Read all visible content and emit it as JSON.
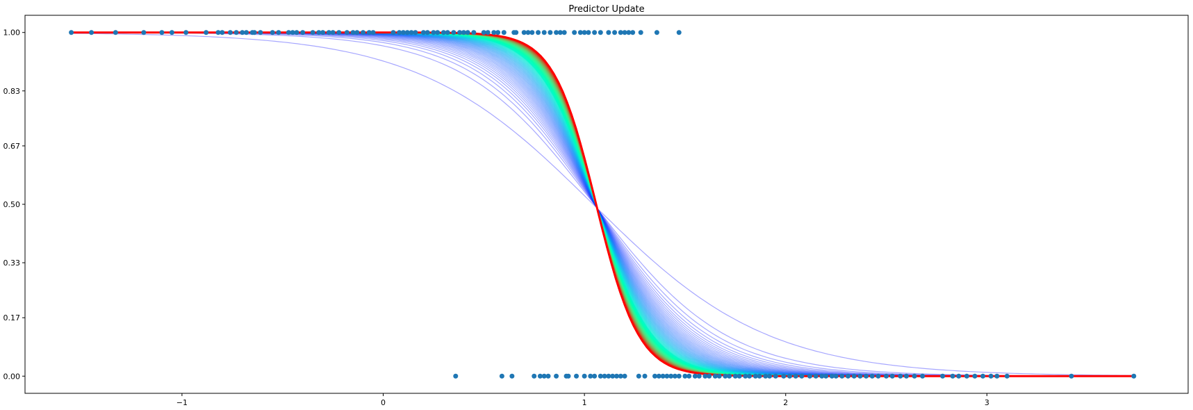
{
  "chart_data": {
    "type": "scatter",
    "title": "Predictor Update",
    "xlabel": "",
    "ylabel": "",
    "xlim": [
      -1.78,
      4.0
    ],
    "ylim": [
      -0.05,
      1.05
    ],
    "x_ticks": [
      -1,
      0,
      1,
      2,
      3
    ],
    "x_tick_labels": [
      "−1",
      "0",
      "1",
      "2",
      "3"
    ],
    "y_ticks": [
      0.0,
      0.17,
      0.33,
      0.5,
      0.67,
      0.83,
      1.0
    ],
    "y_tick_labels": [
      "0.00",
      "0.17",
      "0.33",
      "0.50",
      "0.67",
      "0.83",
      "1.00"
    ],
    "grid": false,
    "legend": "none",
    "colors": {
      "points": "#1f77b4",
      "curve_family": "rainbow colormap (purple to red)",
      "final_curve": "#ff0000"
    },
    "scatter_series": {
      "y1_x": [
        -1.55,
        -1.45,
        -1.33,
        -1.19,
        -1.1,
        -1.05,
        -0.98,
        -0.88,
        -0.82,
        -0.8,
        -0.76,
        -0.73,
        -0.7,
        -0.68,
        -0.65,
        -0.64,
        -0.61,
        -0.55,
        -0.52,
        -0.47,
        -0.45,
        -0.43,
        -0.4,
        -0.35,
        -0.32,
        -0.3,
        -0.27,
        -0.25,
        -0.22,
        -0.18,
        -0.15,
        -0.13,
        -0.1,
        -0.07,
        -0.05,
        0.05,
        0.08,
        0.1,
        0.12,
        0.14,
        0.16,
        0.2,
        0.22,
        0.25,
        0.27,
        0.3,
        0.32,
        0.35,
        0.38,
        0.4,
        0.42,
        0.45,
        0.5,
        0.52,
        0.55,
        0.57,
        0.6,
        0.65,
        0.66,
        0.7,
        0.72,
        0.74,
        0.77,
        0.8,
        0.83,
        0.86,
        0.88,
        0.9,
        0.95,
        0.98,
        1.0,
        1.02,
        1.05,
        1.08,
        1.12,
        1.15,
        1.18,
        1.2,
        1.22,
        1.24,
        1.28,
        1.36,
        1.47
      ],
      "y0_x": [
        0.36,
        0.59,
        0.64,
        0.75,
        0.78,
        0.8,
        0.82,
        0.86,
        0.91,
        0.92,
        0.96,
        1.0,
        1.03,
        1.05,
        1.08,
        1.1,
        1.12,
        1.14,
        1.16,
        1.18,
        1.2,
        1.27,
        1.3,
        1.35,
        1.37,
        1.39,
        1.41,
        1.43,
        1.45,
        1.47,
        1.5,
        1.52,
        1.55,
        1.57,
        1.6,
        1.62,
        1.65,
        1.67,
        1.7,
        1.72,
        1.75,
        1.77,
        1.8,
        1.82,
        1.85,
        1.87,
        1.9,
        1.92,
        1.95,
        1.99,
        2.02,
        2.05,
        2.08,
        2.12,
        2.15,
        2.18,
        2.2,
        2.23,
        2.25,
        2.28,
        2.31,
        2.34,
        2.37,
        2.4,
        2.43,
        2.46,
        2.5,
        2.53,
        2.57,
        2.6,
        2.64,
        2.68,
        2.78,
        2.83,
        2.86,
        2.9,
        2.94,
        2.98,
        3.02,
        3.05,
        3.1,
        3.42,
        3.73
      ]
    },
    "curves": {
      "x_range": [
        -1.55,
        3.73
      ],
      "count": 150,
      "first_curve": {
        "intercept": 2.4,
        "slope": -2.3
      },
      "final_curve": {
        "intercept": 10.0,
        "slope": -9.45
      }
    }
  }
}
